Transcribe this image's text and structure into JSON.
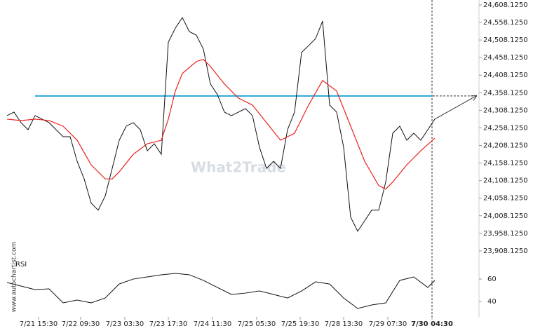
{
  "chart_data": {
    "type": "line",
    "watermark": "What2Trade",
    "side_label": "www.autochartist.com",
    "xlim": [
      -1,
      67.3
    ],
    "ylim": [
      23884,
      24622
    ],
    "xticks": [
      {
        "value": 4.5,
        "label": "7/21 15:30"
      },
      {
        "value": 10.5,
        "label": "7/22 09:30"
      },
      {
        "value": 16.8,
        "label": "7/23 03:30"
      },
      {
        "value": 23,
        "label": "7/23 17:30"
      },
      {
        "value": 29.3,
        "label": "7/24 11:30"
      },
      {
        "value": 35.6,
        "label": "7/25 05:30"
      },
      {
        "value": 41.8,
        "label": "7/25 19:30"
      },
      {
        "value": 48,
        "label": "7/28 13:30"
      },
      {
        "value": 54.3,
        "label": "7/29 07:30"
      },
      {
        "value": 60.6,
        "label": "7/30 04:30"
      }
    ],
    "yticks": [
      {
        "value": 24608.125,
        "label": "24,608.1250"
      },
      {
        "value": 24558.125,
        "label": "24,558.1250"
      },
      {
        "value": 24508.125,
        "label": "24,508.1250"
      },
      {
        "value": 24458.125,
        "label": "24,458.1250"
      },
      {
        "value": 24408.125,
        "label": "24,408.1250"
      },
      {
        "value": 24358.125,
        "label": "24,358.1250"
      },
      {
        "value": 24308.125,
        "label": "24,308.1250"
      },
      {
        "value": 24258.125,
        "label": "24,258.1250"
      },
      {
        "value": 24208.125,
        "label": "24,208.1250"
      },
      {
        "value": 24158.125,
        "label": "24,158.1250"
      },
      {
        "value": 24108.125,
        "label": "24,108.1250"
      },
      {
        "value": 24058.125,
        "label": "24,058.1250"
      },
      {
        "value": 24008.125,
        "label": "24,008.1250"
      },
      {
        "value": 23958.125,
        "label": "23,958.1250"
      },
      {
        "value": 23908.125,
        "label": "23,908.1250"
      }
    ],
    "series": [
      {
        "color": "#111111",
        "x": [
          0,
          1,
          2,
          3,
          4,
          5,
          6,
          7,
          8,
          9,
          10,
          11,
          12,
          13,
          14,
          15,
          16,
          17,
          18,
          19,
          20,
          21,
          22,
          23,
          24,
          25,
          26,
          27,
          28,
          29,
          30,
          31,
          32,
          33,
          34,
          35,
          36,
          37,
          38,
          39,
          40,
          41,
          42,
          43,
          44,
          45,
          46,
          47,
          48,
          49,
          50,
          51,
          52,
          53,
          54,
          55,
          56,
          57,
          58,
          59,
          60,
          61
        ],
        "values": [
          24293,
          24303,
          24273,
          24253,
          24293,
          24283,
          24273,
          24253,
          24233,
          24233,
          24163,
          24113,
          24044,
          24024,
          24064,
          24143,
          24223,
          24263,
          24273,
          24253,
          24193,
          24213,
          24183,
          24502,
          24542,
          24572,
          24532,
          24522,
          24482,
          24383,
          24353,
          24303,
          24293,
          24303,
          24313,
          24293,
          24203,
          24143,
          24163,
          24143,
          24253,
          24303,
          24473,
          24492,
          24512,
          24562,
          24323,
          24303,
          24203,
          24004,
          23964,
          23994,
          24024,
          24024,
          24104,
          24243,
          24263,
          24223,
          24243,
          24223,
          24253,
          24283
        ]
      },
      {
        "color": "#e8231f",
        "x": [
          0,
          2,
          4,
          6,
          8,
          10,
          12,
          14,
          15,
          16,
          18,
          20,
          22,
          23,
          24,
          25,
          27,
          28,
          29,
          31,
          33,
          35,
          37,
          39,
          41,
          43,
          45,
          47,
          49,
          51,
          53,
          54,
          55,
          57,
          59,
          61
        ],
        "values": [
          24283,
          24279,
          24283,
          24279,
          24263,
          24223,
          24153,
          24113,
          24113,
          24133,
          24183,
          24213,
          24223,
          24283,
          24363,
          24413,
          24447,
          24453,
          24433,
          24383,
          24343,
          24323,
          24273,
          24223,
          24243,
          24323,
          24393,
          24363,
          24263,
          24163,
          24094,
          24084,
          24104,
          24153,
          24193,
          24229
        ]
      }
    ],
    "resistance": {
      "value": 24349,
      "color": "#2aa7d8",
      "x": [
        4,
        60.7
      ]
    },
    "rsi": {
      "label": "RSI",
      "ylim": [
        26.3,
        74.4
      ],
      "yticks": [
        60,
        40
      ],
      "color": "#111111",
      "x": [
        0,
        2,
        4,
        6,
        8,
        10,
        12,
        14,
        16,
        18,
        20,
        22,
        24,
        26,
        28,
        30,
        32,
        34,
        36,
        38,
        40,
        42,
        44,
        46,
        48,
        50,
        52,
        54,
        56,
        58,
        60,
        61
      ],
      "values": [
        56.9,
        53.8,
        50.6,
        51.3,
        38.8,
        41.3,
        38.8,
        43.1,
        55.6,
        60,
        61.9,
        63.8,
        65,
        63.8,
        58.8,
        52.5,
        46.3,
        47.5,
        49.4,
        46.3,
        43.1,
        49.4,
        57.5,
        55.6,
        43.1,
        33.8,
        36.9,
        38.8,
        58.8,
        61.9,
        52.5,
        58.8
      ]
    }
  }
}
